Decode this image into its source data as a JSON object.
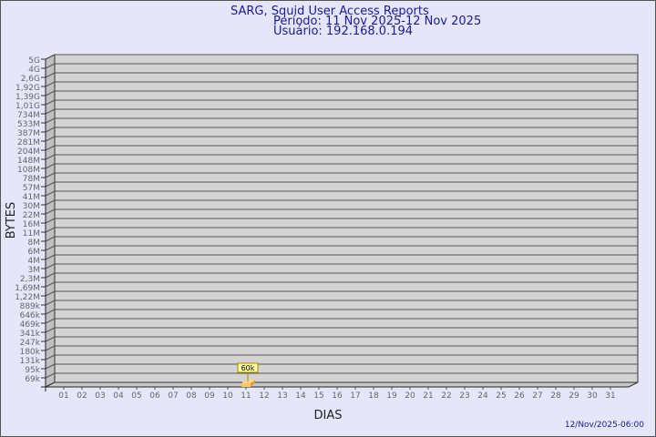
{
  "chart_data": {
    "type": "bar",
    "title": "SARG, Squid User Access Reports",
    "subtitle_period": "Período: 11 Nov 2025-12 Nov 2025",
    "subtitle_user": "Usuário: 192.168.0.194",
    "xlabel": "DIAS",
    "ylabel": "BYTES",
    "y_scale": "log",
    "grid": true,
    "y_tick_labels": [
      "5G",
      "4G",
      "2,6G",
      "1,92G",
      "1,39G",
      "1,01G",
      "734M",
      "533M",
      "387M",
      "281M",
      "204M",
      "148M",
      "108M",
      "78M",
      "57M",
      "41M",
      "30M",
      "22M",
      "16M",
      "11M",
      "8M",
      "6M",
      "4M",
      "3M",
      "2,3M",
      "1,69M",
      "1,22M",
      "889k",
      "646k",
      "469k",
      "341k",
      "247k",
      "180k",
      "131k",
      "95k",
      "69k"
    ],
    "categories": [
      "01",
      "02",
      "03",
      "04",
      "05",
      "06",
      "07",
      "08",
      "09",
      "10",
      "11",
      "12",
      "13",
      "14",
      "15",
      "16",
      "17",
      "18",
      "19",
      "20",
      "21",
      "22",
      "23",
      "24",
      "25",
      "26",
      "27",
      "28",
      "29",
      "30",
      "31"
    ],
    "bars": [
      {
        "day": "11",
        "label": "60k",
        "value": 60000
      }
    ],
    "footer": "12/Nov/2025-06:00",
    "colors": {
      "background": "#e6e6fa",
      "wall": "#d3d3d3",
      "side": "#c0c0c0",
      "bar": "#ffc860",
      "text_title": "#1a1a9a",
      "ticks": "#666666"
    }
  }
}
